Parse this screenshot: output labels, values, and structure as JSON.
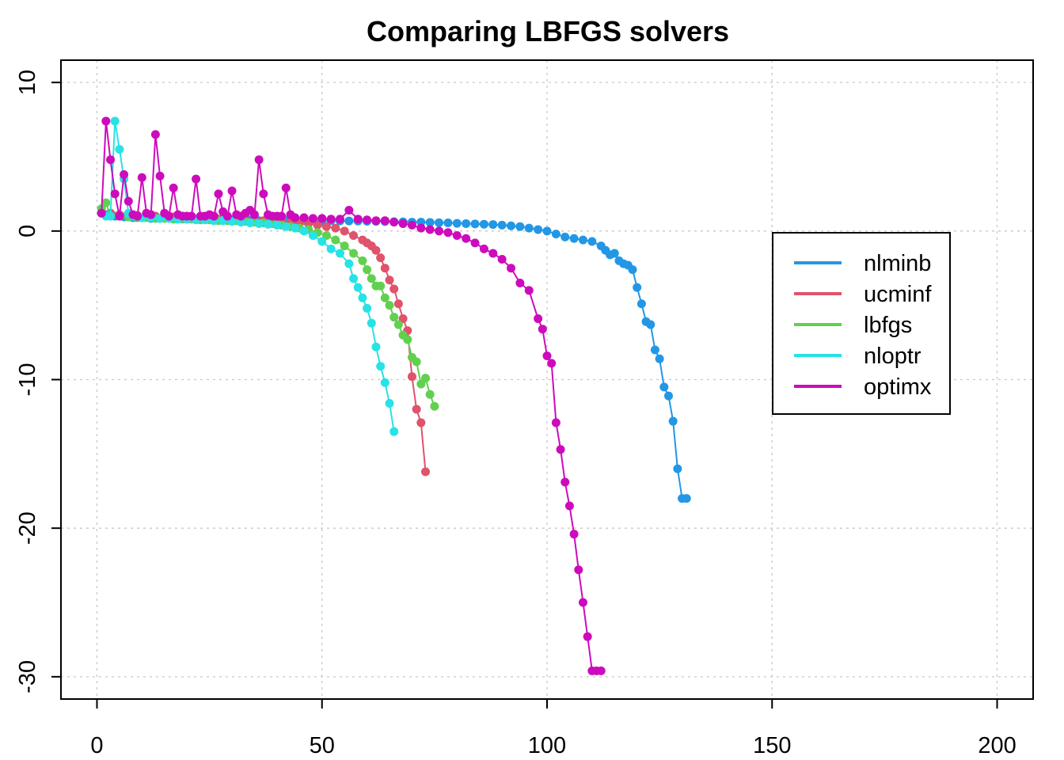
{
  "chart_data": {
    "type": "line",
    "title": "Comparing LBFGS solvers",
    "xlabel": "",
    "ylabel": "",
    "xlim": [
      -8,
      208
    ],
    "ylim": [
      -31.5,
      11.5
    ],
    "x_ticks": [
      0,
      50,
      100,
      150,
      200
    ],
    "y_ticks": [
      10,
      0,
      -10,
      -20,
      -30
    ],
    "x_tick_labels": [
      "0",
      "50",
      "100",
      "150",
      "200"
    ],
    "y_tick_labels": [
      "10",
      "0",
      "-10",
      "-20",
      "-30"
    ],
    "grid": true,
    "legend_position": "right",
    "series": [
      {
        "name": "nlminb",
        "color": "#2297E6",
        "x": [
          1,
          2,
          3,
          4,
          5,
          6,
          7,
          8,
          9,
          10,
          12,
          14,
          16,
          18,
          20,
          22,
          24,
          26,
          28,
          30,
          32,
          34,
          36,
          38,
          40,
          42,
          44,
          46,
          48,
          50,
          52,
          54,
          56,
          58,
          60,
          62,
          64,
          66,
          68,
          70,
          72,
          74,
          76,
          78,
          80,
          82,
          84,
          86,
          88,
          90,
          92,
          94,
          96,
          98,
          100,
          102,
          104,
          106,
          108,
          110,
          112,
          113,
          114,
          115,
          116,
          117,
          118,
          119,
          120,
          121,
          122,
          123,
          124,
          125,
          126,
          127,
          128,
          129,
          130,
          131
        ],
        "y": [
          1.2,
          1.1,
          1.0,
          1.0,
          1.0,
          0.95,
          0.95,
          0.9,
          0.9,
          0.9,
          0.85,
          0.85,
          0.85,
          0.8,
          0.8,
          0.8,
          0.8,
          0.8,
          0.75,
          0.75,
          0.75,
          0.75,
          0.7,
          0.7,
          0.7,
          0.7,
          0.7,
          0.7,
          0.7,
          0.7,
          0.7,
          0.68,
          0.68,
          0.67,
          0.66,
          0.65,
          0.64,
          0.63,
          0.62,
          0.6,
          0.6,
          0.58,
          0.56,
          0.55,
          0.52,
          0.5,
          0.48,
          0.46,
          0.44,
          0.4,
          0.35,
          0.3,
          0.2,
          0.1,
          0.0,
          -0.2,
          -0.4,
          -0.5,
          -0.6,
          -0.7,
          -1.0,
          -1.3,
          -1.6,
          -1.5,
          -2.0,
          -2.2,
          -2.3,
          -2.6,
          -3.8,
          -4.9,
          -6.1,
          -6.3,
          -8.0,
          -8.6,
          -10.5,
          -11.1,
          -12.8,
          -16.0,
          -18.0,
          -18.0
        ]
      },
      {
        "name": "ucminf",
        "color": "#DF536B",
        "x": [
          1,
          3,
          5,
          7,
          9,
          11,
          13,
          15,
          17,
          19,
          21,
          23,
          25,
          27,
          29,
          31,
          33,
          35,
          37,
          39,
          41,
          43,
          45,
          47,
          49,
          51,
          53,
          55,
          57,
          59,
          60,
          61,
          62,
          63,
          64,
          65,
          66,
          67,
          68,
          69,
          70,
          71,
          72,
          73
        ],
        "y": [
          1.2,
          1.2,
          1.1,
          1.1,
          1.05,
          1.0,
          1.0,
          0.95,
          0.95,
          0.9,
          0.9,
          0.85,
          0.85,
          0.8,
          0.8,
          0.8,
          0.75,
          0.75,
          0.7,
          0.7,
          0.65,
          0.6,
          0.55,
          0.5,
          0.4,
          0.3,
          0.2,
          0.0,
          -0.3,
          -0.6,
          -0.8,
          -1.0,
          -1.3,
          -1.8,
          -2.5,
          -3.3,
          -3.9,
          -4.9,
          -5.9,
          -6.7,
          -9.8,
          -12.0,
          -12.9,
          -16.2
        ]
      },
      {
        "name": "lbfgs",
        "color": "#61D04F",
        "x": [
          1,
          2,
          3,
          5,
          7,
          9,
          11,
          13,
          15,
          17,
          19,
          21,
          23,
          25,
          27,
          29,
          31,
          33,
          35,
          37,
          39,
          41,
          43,
          45,
          47,
          49,
          51,
          53,
          55,
          57,
          59,
          60,
          61,
          62,
          63,
          64,
          65,
          66,
          67,
          68,
          69,
          70,
          71,
          72,
          73,
          74,
          75
        ],
        "y": [
          1.5,
          1.9,
          1.0,
          1.0,
          0.95,
          0.9,
          0.9,
          0.85,
          0.85,
          0.8,
          0.8,
          0.8,
          0.75,
          0.75,
          0.7,
          0.7,
          0.7,
          0.65,
          0.6,
          0.55,
          0.5,
          0.4,
          0.3,
          0.2,
          0.1,
          -0.1,
          -0.3,
          -0.6,
          -1.0,
          -1.5,
          -2.0,
          -2.6,
          -3.2,
          -3.7,
          -3.7,
          -4.5,
          -5.0,
          -5.8,
          -6.3,
          -7.0,
          -7.3,
          -8.5,
          -8.8,
          -10.3,
          -9.9,
          -11.0,
          -11.8
        ]
      },
      {
        "name": "nloptr",
        "color": "#28E2E5",
        "x": [
          1,
          2,
          3,
          4,
          5,
          6,
          7,
          8,
          10,
          12,
          14,
          16,
          18,
          20,
          22,
          24,
          26,
          28,
          30,
          32,
          34,
          36,
          38,
          40,
          42,
          44,
          46,
          48,
          50,
          52,
          54,
          56,
          57,
          58,
          59,
          60,
          61,
          62,
          63,
          64,
          65,
          66
        ],
        "y": [
          1.2,
          1.0,
          1.0,
          7.4,
          5.5,
          3.5,
          1.2,
          1.0,
          0.9,
          0.9,
          0.85,
          0.85,
          0.8,
          0.8,
          0.75,
          0.75,
          0.7,
          0.7,
          0.65,
          0.6,
          0.55,
          0.5,
          0.45,
          0.4,
          0.3,
          0.2,
          0.0,
          -0.3,
          -0.7,
          -1.2,
          -1.5,
          -2.2,
          -3.2,
          -3.8,
          -4.5,
          -5.2,
          -6.2,
          -7.8,
          -9.1,
          -10.2,
          -11.6,
          -13.5
        ]
      },
      {
        "name": "optimx",
        "color": "#CD0BBC",
        "x": [
          1,
          2,
          3,
          4,
          5,
          6,
          7,
          8,
          9,
          10,
          11,
          12,
          13,
          14,
          15,
          16,
          17,
          18,
          19,
          20,
          21,
          22,
          23,
          24,
          25,
          26,
          27,
          28,
          29,
          30,
          31,
          32,
          33,
          34,
          35,
          36,
          37,
          38,
          39,
          40,
          41,
          42,
          43,
          44,
          46,
          48,
          50,
          52,
          54,
          56,
          58,
          60,
          62,
          64,
          66,
          68,
          70,
          72,
          74,
          76,
          78,
          80,
          82,
          84,
          86,
          88,
          90,
          92,
          94,
          96,
          98,
          99,
          100,
          101,
          102,
          103,
          104,
          105,
          106,
          107,
          108,
          109,
          110,
          111,
          112
        ],
        "y": [
          1.2,
          7.4,
          4.8,
          2.5,
          1.0,
          3.8,
          2.0,
          1.1,
          1.0,
          3.6,
          1.2,
          1.1,
          6.5,
          3.7,
          1.2,
          1.0,
          2.9,
          1.1,
          1.0,
          1.0,
          1.0,
          3.5,
          1.0,
          1.0,
          1.1,
          1.0,
          2.5,
          1.3,
          1.0,
          2.7,
          1.1,
          1.0,
          1.2,
          1.4,
          1.1,
          4.8,
          2.5,
          1.1,
          1.0,
          1.0,
          1.0,
          2.9,
          1.1,
          0.9,
          0.9,
          0.85,
          0.85,
          0.8,
          0.8,
          1.4,
          0.8,
          0.75,
          0.7,
          0.7,
          0.6,
          0.5,
          0.4,
          0.2,
          0.1,
          0.0,
          -0.1,
          -0.3,
          -0.5,
          -0.8,
          -1.2,
          -1.5,
          -1.9,
          -2.5,
          -3.5,
          -4.0,
          -5.9,
          -6.6,
          -8.4,
          -8.9,
          -12.9,
          -14.7,
          -16.9,
          -18.5,
          -20.4,
          -22.8,
          -25.0,
          -27.3,
          -29.6,
          -29.6,
          -29.6
        ]
      }
    ]
  }
}
